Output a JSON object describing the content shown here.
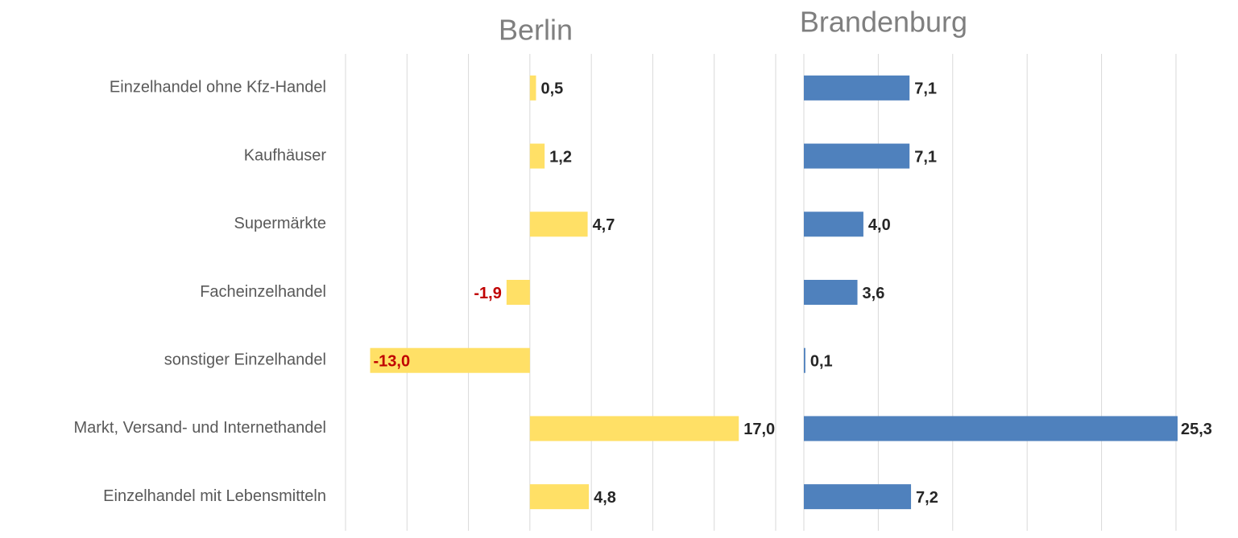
{
  "chart_data": {
    "type": "bar",
    "orientation": "horizontal",
    "categories": [
      "Einzelhandel ohne Kfz-Handel",
      "Kaufhäuser",
      "Supermärkte",
      "Facheinzelhandel",
      "sonstiger Einzelhandel",
      "Markt, Versand- und Internethandel",
      "Einzelhandel mit Lebensmitteln"
    ],
    "grid": true,
    "negative_label_color": "#c00000",
    "label_color": "#262626",
    "panels": [
      {
        "title": "Berlin",
        "color": "#ffe066",
        "values": [
          0.5,
          1.2,
          4.7,
          -1.9,
          -13.0,
          17.0,
          4.8
        ],
        "value_labels": [
          "0,5",
          "1,2",
          "4,7",
          "-1,9",
          "-13,0",
          "17,0",
          "4,8"
        ],
        "xlim": [
          -15,
          20
        ],
        "xticks": [
          -15,
          -10,
          -5,
          0,
          5,
          10,
          15,
          20
        ]
      },
      {
        "title": "Brandenburg",
        "color": "#4f81bd",
        "values": [
          7.1,
          7.1,
          4.0,
          3.6,
          0.1,
          25.3,
          7.2
        ],
        "value_labels": [
          "7,1",
          "7,1",
          "4,0",
          "3,6",
          "0,1",
          "25,3",
          "7,2"
        ],
        "xlim": [
          0,
          25
        ],
        "xticks": [
          0,
          5,
          10,
          15,
          20,
          25
        ]
      }
    ]
  }
}
